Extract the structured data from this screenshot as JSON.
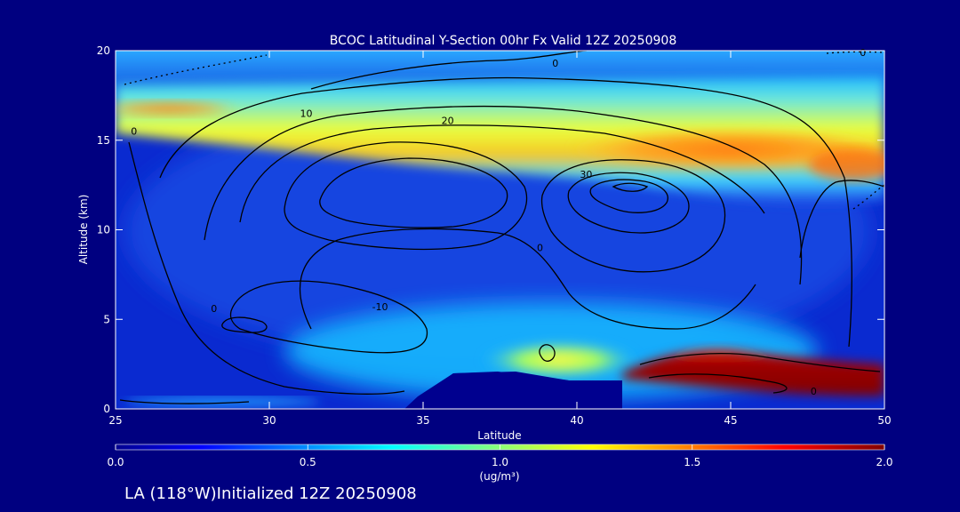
{
  "chart_data": {
    "type": "heatmap",
    "title": "BCOC Latitudinal Y-Section 00hr  Fx Valid 12Z 20250908",
    "xlabel": "Latitude",
    "ylabel": "Altitude (km)",
    "xlim": [
      25,
      50
    ],
    "ylim": [
      0,
      20
    ],
    "x_ticks": [
      "25",
      "30",
      "35",
      "40",
      "45",
      "50"
    ],
    "y_ticks": [
      "0",
      "5",
      "10",
      "15",
      "20"
    ],
    "colorbar": {
      "min": 0.0,
      "max": 2.0,
      "tick_labels": [
        "0.0",
        "0.5",
        "1.0",
        "1.5",
        "2.0"
      ],
      "unit_label": "(ug/m³)"
    },
    "concentration_layers": [
      {
        "name": "stratospheric band",
        "lat_range": [
          25,
          50
        ],
        "alt_range": [
          13,
          19
        ],
        "peak_value": 1.55,
        "peak_lat": 44,
        "peak_alt": 14.5
      },
      {
        "name": "surface plume",
        "lat_range": [
          42,
          50
        ],
        "alt_range": [
          0.5,
          3
        ],
        "peak_value": 2.0,
        "peak_lat": 45,
        "peak_alt": 1.3
      }
    ],
    "contour_labels": [
      {
        "text": "0",
        "lat": 39.3,
        "alt": 19.3
      },
      {
        "text": "0",
        "lat": 49.3,
        "alt": 19.9
      },
      {
        "text": "10",
        "lat": 31.2,
        "alt": 16.5
      },
      {
        "text": "20",
        "lat": 35.8,
        "alt": 16.1
      },
      {
        "text": "30",
        "lat": 40.3,
        "alt": 13.1
      },
      {
        "text": "-10",
        "lat": 33.6,
        "alt": 5.7
      },
      {
        "text": "0",
        "lat": 25.6,
        "alt": 15.5
      },
      {
        "text": "0",
        "lat": 38.8,
        "alt": 9.0
      },
      {
        "text": "0",
        "lat": 28.2,
        "alt": 5.6
      },
      {
        "text": "0",
        "lat": 47.7,
        "alt": 1.0
      }
    ]
  },
  "footer": {
    "caption": "LA (118°W)Initialized 12Z 20250908"
  }
}
